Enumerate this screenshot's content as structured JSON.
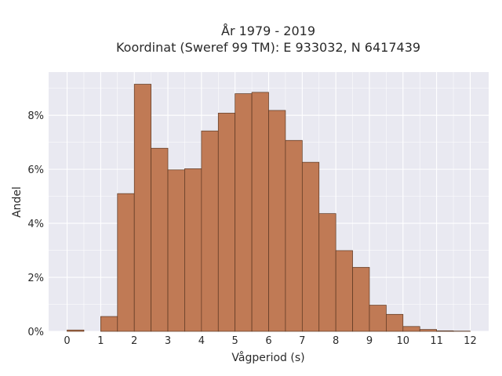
{
  "chart_data": {
    "type": "bar",
    "title_lines": [
      "År 1979 - 2019",
      "Koordinat (Sweref 99 TM): E 933032, N 6417439"
    ],
    "xlabel": "Vågperiod (s)",
    "ylabel": "Andel",
    "bin_width": 0.5,
    "x": [
      0,
      0.5,
      1,
      1.5,
      2,
      2.5,
      3,
      3.5,
      4,
      4.5,
      5,
      5.5,
      6,
      6.5,
      7,
      7.5,
      8,
      8.5,
      9,
      9.5,
      10,
      10.5,
      11,
      11.5
    ],
    "values": [
      0.05,
      0,
      0.55,
      5.1,
      9.15,
      6.78,
      5.98,
      6.02,
      7.42,
      8.08,
      8.8,
      8.85,
      8.18,
      7.07,
      6.26,
      4.36,
      2.99,
      2.37,
      0.97,
      0.63,
      0.18,
      0.07,
      0.02,
      0.01
    ],
    "xlim": [
      -0.55,
      12.55
    ],
    "ylim": [
      0,
      9.6
    ],
    "xticks": [
      0,
      1,
      2,
      3,
      4,
      5,
      6,
      7,
      8,
      9,
      10,
      11,
      12
    ],
    "xtick_labels": [
      "0",
      "1",
      "2",
      "3",
      "4",
      "5",
      "6",
      "7",
      "8",
      "9",
      "10",
      "11",
      "12"
    ],
    "yticks": [
      0,
      2,
      4,
      6,
      8
    ],
    "ytick_labels": [
      "0%",
      "2%",
      "4%",
      "6%",
      "8%"
    ],
    "grid": true,
    "legend": "none",
    "colors": {
      "bar": "#c07a55",
      "bar_edge": "#5a3722",
      "plot_bg": "#e9e9f1",
      "grid": "#ffffff"
    }
  }
}
